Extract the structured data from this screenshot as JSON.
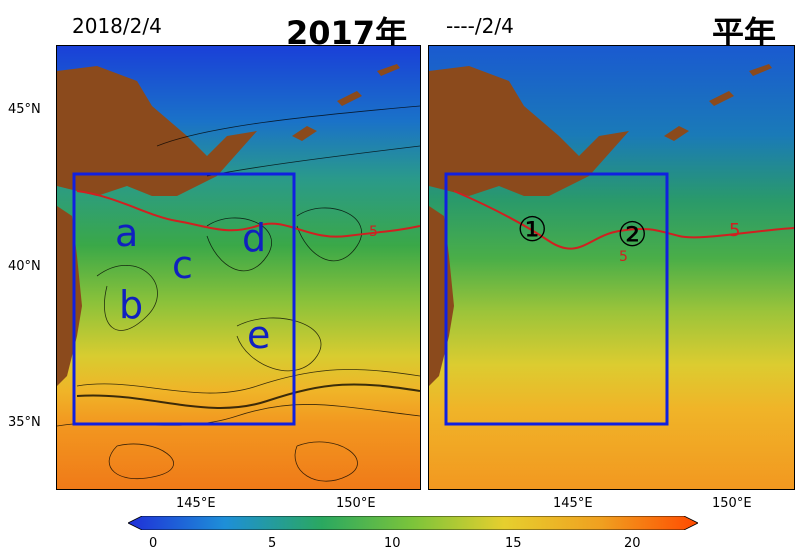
{
  "left_panel": {
    "date": "2018/2/4",
    "title": "2017年",
    "lat_labels": [
      "45°N",
      "40°N",
      "35°N"
    ],
    "lon_labels": [
      "145°E",
      "150°E"
    ],
    "region_labels": [
      "a",
      "b",
      "c",
      "d",
      "e"
    ],
    "contour_label": "5"
  },
  "right_panel": {
    "date": "----/2/4",
    "title": "平年",
    "lon_labels": [
      "145°E",
      "150°E"
    ],
    "region_labels": [
      "①",
      "②"
    ],
    "contour_labels": [
      "5",
      "5"
    ]
  },
  "colorbar": {
    "ticks": [
      "0",
      "5",
      "10",
      "15",
      "20"
    ],
    "colors": [
      "#1f2fd8",
      "#1e8fd8",
      "#2aa860",
      "#7cc43a",
      "#e6cf2e",
      "#f0a020",
      "#ff4a00"
    ]
  },
  "colors": {
    "land": "#8b4a1c",
    "box": "#1020e0",
    "contour": "#d02020",
    "region_text": "#1020c0"
  }
}
